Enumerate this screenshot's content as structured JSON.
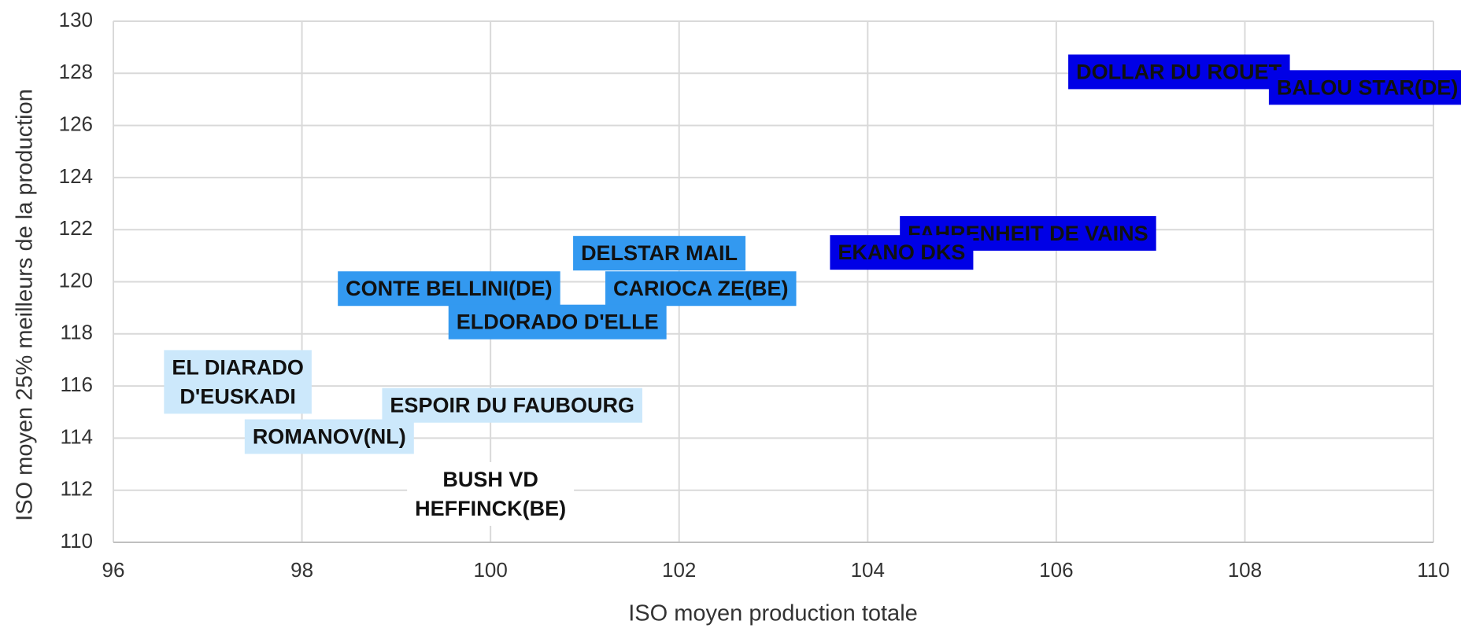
{
  "chart_data": {
    "type": "scatter",
    "x_label": "ISO moyen production totale",
    "y_label": "ISO moyen 25% meilleurs de la production",
    "xlim": [
      96,
      110
    ],
    "xticks": [
      96,
      98,
      100,
      102,
      104,
      106,
      108,
      110
    ],
    "ylim": [
      110,
      130
    ],
    "yticks": [
      110,
      112,
      114,
      116,
      118,
      120,
      122,
      124,
      126,
      128,
      130
    ],
    "grid": true,
    "marker_color": "#4a8fe0",
    "points": [
      {
        "label": [
          "DOLLAR DU ROUET"
        ],
        "x": 107.3,
        "y": 128.0,
        "color": "#0000e6"
      },
      {
        "label": [
          "BALOU STAR(DE)"
        ],
        "x": 109.3,
        "y": 127.4,
        "color": "#0000e6"
      },
      {
        "label": [
          "FAHRENHEIT DE VAINS"
        ],
        "x": 105.7,
        "y": 121.8,
        "color": "#0000e6"
      },
      {
        "label": [
          "EKANO DKS"
        ],
        "x": 104.36,
        "y": 121.07,
        "color": "#0000e6"
      },
      {
        "label": [
          "DELSTAR MAIL"
        ],
        "x": 101.79,
        "y": 121.04,
        "color": "#3399f0"
      },
      {
        "label": [
          "CONTE BELLINI(DE)"
        ],
        "x": 99.56,
        "y": 119.68,
        "color": "#3399f0"
      },
      {
        "label": [
          "CARIOCA ZE(BE)"
        ],
        "x": 102.23,
        "y": 119.68,
        "color": "#3399f0"
      },
      {
        "label": [
          "ELDORADO D'ELLE"
        ],
        "x": 100.71,
        "y": 118.4,
        "color": "#3399f0"
      },
      {
        "label": [
          "EL DIARADO",
          "D'EUSKADI"
        ],
        "x": 97.32,
        "y": 116.1,
        "color": "#cce8fb"
      },
      {
        "label": [
          "ESPOIR DU FAUBOURG"
        ],
        "x": 100.23,
        "y": 115.2,
        "color": "#cce8fb"
      },
      {
        "label": [
          "ROMANOV(NL)"
        ],
        "x": 98.29,
        "y": 114.0,
        "color": "#cce8fb"
      },
      {
        "label": [
          "BUSH VD",
          "HEFFINCK(BE)"
        ],
        "x": 100.0,
        "y": 111.8,
        "color": "#ffffff"
      }
    ]
  }
}
